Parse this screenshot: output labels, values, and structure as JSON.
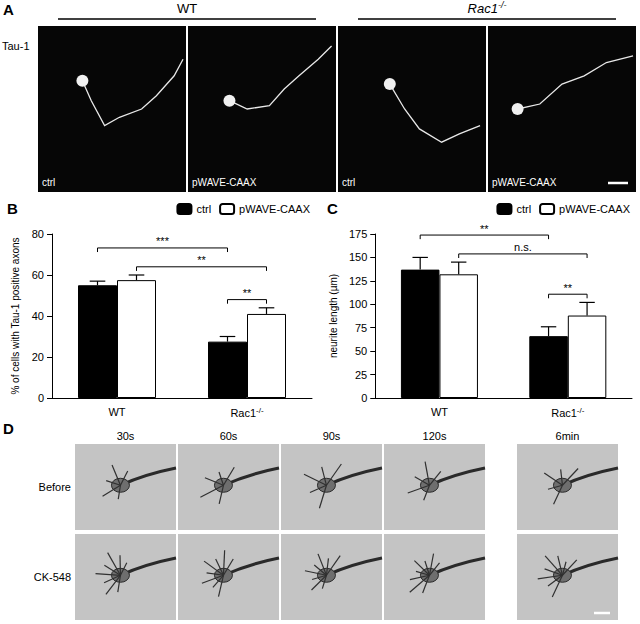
{
  "panel_A": {
    "label": "A",
    "groups": [
      "WT",
      "Rac1-/-"
    ],
    "row_label": "Tau-1",
    "images": [
      "ctrl",
      "pWAVE-CAAX",
      "ctrl",
      "pWAVE-CAAX"
    ]
  },
  "chart_data": [
    {
      "type": "bar",
      "panel_label": "B",
      "y_label": "% of cells with Tau-1 positive axons",
      "categories": [
        "WT",
        "Rac1-/-"
      ],
      "series": [
        {
          "name": "ctrl",
          "color": "#000000",
          "values": [
            55,
            27.5
          ],
          "errors": [
            2,
            2.5
          ]
        },
        {
          "name": "pWAVE-CAAX",
          "color": "#ffffff",
          "values": [
            57.5,
            41
          ],
          "errors": [
            2.5,
            3
          ]
        }
      ],
      "ylim": [
        0,
        80
      ],
      "yticks": [
        0,
        20,
        40,
        60,
        80
      ],
      "grid": false,
      "legend": "upper right",
      "annotations": [
        {
          "from": {
            "category": "Rac1-/-",
            "series": "ctrl"
          },
          "to": {
            "category": "Rac1-/-",
            "series": "pWAVE-CAAX"
          },
          "label": "**"
        },
        {
          "from": {
            "category": "WT",
            "series": "pWAVE-CAAX"
          },
          "to": {
            "category": "Rac1-/-",
            "series": "pWAVE-CAAX"
          },
          "label": "**"
        },
        {
          "from": {
            "category": "WT",
            "series": "ctrl"
          },
          "to": {
            "category": "Rac1-/-",
            "series": "ctrl"
          },
          "label": "***"
        }
      ]
    },
    {
      "type": "bar",
      "panel_label": "C",
      "y_label": "neurite length (µm)",
      "categories": [
        "WT",
        "Rac1-/-"
      ],
      "series": [
        {
          "name": "ctrl",
          "color": "#000000",
          "values": [
            137,
            66
          ],
          "errors": [
            13,
            10
          ]
        },
        {
          "name": "pWAVE-CAAX",
          "color": "#ffffff",
          "values": [
            132,
            88
          ],
          "errors": [
            13,
            14
          ]
        }
      ],
      "ylim": [
        0,
        175
      ],
      "yticks": [
        0,
        25,
        50,
        75,
        100,
        125,
        150,
        175
      ],
      "grid": false,
      "legend": "upper right",
      "annotations": [
        {
          "from": {
            "category": "Rac1-/-",
            "series": "ctrl"
          },
          "to": {
            "category": "Rac1-/-",
            "series": "pWAVE-CAAX"
          },
          "label": "**"
        },
        {
          "from": {
            "category": "WT",
            "series": "pWAVE-CAAX"
          },
          "to": {
            "category": "Rac1-/-",
            "series": "pWAVE-CAAX"
          },
          "label": "n.s."
        },
        {
          "from": {
            "category": "WT",
            "series": "ctrl"
          },
          "to": {
            "category": "Rac1-/-",
            "series": "ctrl"
          },
          "label": "**"
        }
      ]
    }
  ],
  "panel_D": {
    "label": "D",
    "columns": [
      "30s",
      "60s",
      "90s",
      "120s",
      "6min"
    ],
    "rows": [
      "Before",
      "CK-548"
    ]
  }
}
